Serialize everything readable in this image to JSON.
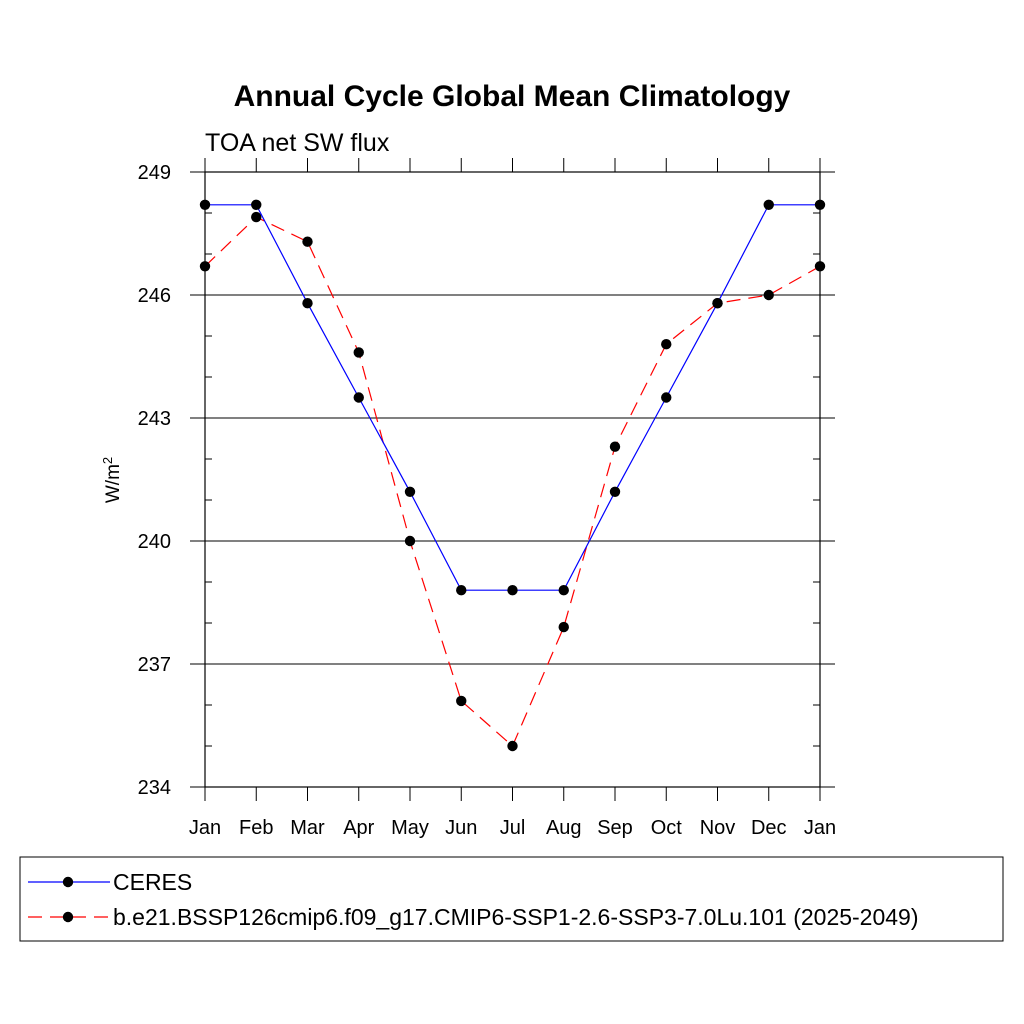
{
  "chart_data": {
    "type": "line",
    "title": "Annual Cycle Global Mean Climatology",
    "subtitle": "TOA net SW flux",
    "ylabel": "W/m",
    "ylabel_superscript": "2",
    "ylim": [
      234,
      249
    ],
    "yticks": [
      234,
      237,
      240,
      243,
      246,
      249
    ],
    "y_minor_step": 1,
    "x": [
      "Jan",
      "Feb",
      "Mar",
      "Apr",
      "May",
      "Jun",
      "Jul",
      "Aug",
      "Sep",
      "Oct",
      "Nov",
      "Dec",
      "Jan"
    ],
    "grid": false,
    "legend_position": "bottom",
    "series": [
      {
        "name": "CERES",
        "color": "#0000ff",
        "line_style": "solid",
        "marker": "filled-circle",
        "values": [
          248.2,
          248.2,
          245.8,
          243.5,
          241.2,
          238.8,
          238.8,
          238.8,
          241.2,
          243.5,
          245.8,
          248.2,
          248.2
        ]
      },
      {
        "name": "b.e21.BSSP126cmip6.f09_g17.CMIP6-SSP1-2.6-SSP3-7.0Lu.101 (2025-2049)",
        "color": "#ff0000",
        "line_style": "dashed",
        "marker": "filled-circle",
        "values": [
          246.7,
          247.9,
          247.3,
          244.6,
          240.0,
          236.1,
          235.0,
          237.9,
          242.3,
          244.8,
          245.8,
          246.0,
          246.7
        ]
      }
    ]
  }
}
